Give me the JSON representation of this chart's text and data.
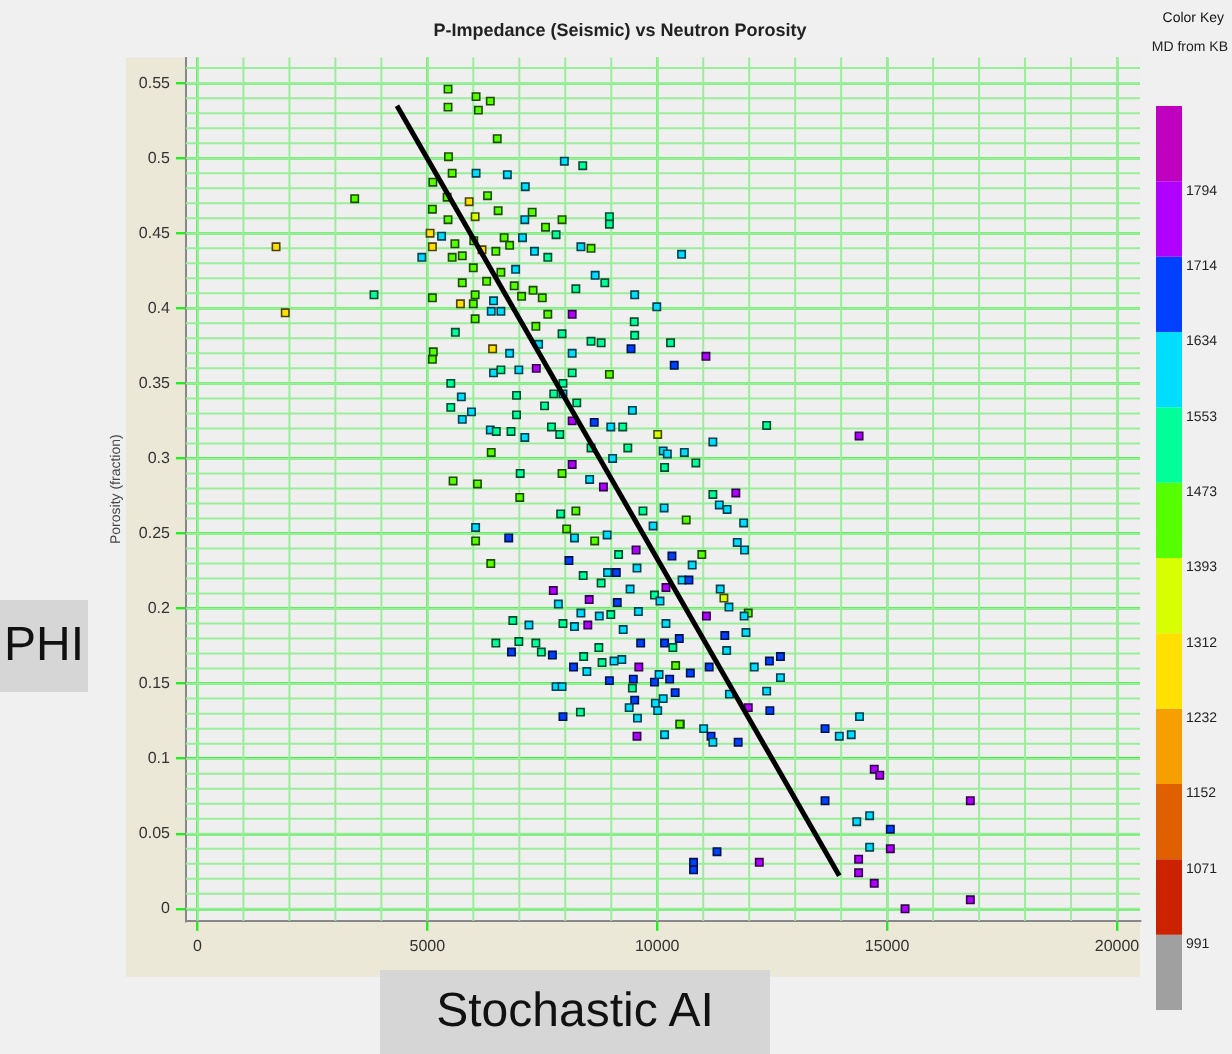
{
  "chart_data": {
    "type": "scatter",
    "title": "P-Impedance (Seismic) vs Neutron Porosity",
    "ylabel": "Porosity (fraction)",
    "clabel": "MD from KB",
    "annotations": [
      "PHI",
      "Stochastic AI",
      "Color Key"
    ],
    "xlim": [
      -250,
      20500
    ],
    "xticks": [
      0,
      5000,
      10000,
      15000,
      20000
    ],
    "ylim": [
      -0.008,
      0.567
    ],
    "yticks": [
      0,
      0.05,
      0.1,
      0.15,
      0.2,
      0.25,
      0.3,
      0.35,
      0.4,
      0.45,
      0.5,
      0.55
    ],
    "clim": [
      911,
      1875
    ],
    "cticks": [
      991,
      1071,
      1152,
      1232,
      1312,
      1393,
      1473,
      1553,
      1634,
      1714,
      1794
    ],
    "grid": true,
    "legend": false,
    "series": [
      {
        "marker": "square",
        "colors": [
          "#55ff00",
          "#55ff00",
          "#55ff00",
          "#55ff00",
          "#55ff00",
          "#55ff00",
          "#55ff00",
          "#00ddff",
          "#00ff99",
          "#55ff00",
          "#55ff00",
          "#55ff00",
          "#00ddff",
          "#00ddff",
          "#00ddff",
          "#55ff00",
          "#ffe000",
          "#55ff00",
          "#55ff00",
          "#55ff00",
          "#d8ff00",
          "#55ff00",
          "#55ff00",
          "#00ddff",
          "#55ff00",
          "#00ff99",
          "#00ff99",
          "#55ff00",
          "#ffe000",
          "#00ddff",
          "#55ff00",
          "#55ff00",
          "#55ff00",
          "#00ddff",
          "#00ff99",
          "#ffe000",
          "#ffe000",
          "#00ddff",
          "#55ff00",
          "#55ff00",
          "#ffe000",
          "#55ff00",
          "#55ff00",
          "#00ddff",
          "#00ff99",
          "#00ddff",
          "#55ff00",
          "#00ddff",
          "#55ff00",
          "#55ff00",
          "#00ddff",
          "#00ddff",
          "#00ff99",
          "#00ff99",
          "#55ff00",
          "#55ff00",
          "#55ff00",
          "#00ff99",
          "#55ff00",
          "#55ff00",
          "#55ff00",
          "#55ff00",
          "#00ddff",
          "#55ff00",
          "#ffe000",
          "#ffe000",
          "#55ff00",
          "#00ddff",
          "#00ddff",
          "#00ddff",
          "#00ddff",
          "#55ff00",
          "#b000ff",
          "#55ff00",
          "#00ff99",
          "#55ff00",
          "#00ff99",
          "#00ff99",
          "#00ff99",
          "#00ff99",
          "#00ff99",
          "#00ff99",
          "#00ddff",
          "#0040ff",
          "#ffe000",
          "#55ff00",
          "#55ff00",
          "#00ddff",
          "#00ddff",
          "#b000ff",
          "#0040ff",
          "#b000ff",
          "#00ddff",
          "#00ff99",
          "#00ddff",
          "#00ff99",
          "#55ff00",
          "#00ff99",
          "#00ff99",
          "#00ddff",
          "#00ff99",
          "#00ff99",
          "#00ddff",
          "#00ff99",
          "#00ff99",
          "#00ddff",
          "#00ff99",
          "#00ff99",
          "#00ddff",
          "#00ddff",
          "#b000ff",
          "#0040ff",
          "#00ff99",
          "#00ddff",
          "#00ff99",
          "#00ddff",
          "#00ff99",
          "#00ff99",
          "#00ff99",
          "#00ddff",
          "#d8ff00",
          "#00ff99",
          "#b000ff",
          "#00ddff",
          "#00ff99",
          "#00ff99",
          "#55ff00",
          "#00ddff",
          "#00ddff",
          "#00ddff",
          "#00ddff",
          "#00ff99",
          "#00ff99",
          "#b000ff",
          "#00ff99",
          "#55ff00",
          "#00ddff",
          "#b000ff",
          "#55ff00",
          "#55ff00",
          "#00ff99",
          "#b000ff",
          "#55ff00",
          "#00ff99",
          "#55ff00",
          "#00ff99",
          "#00ddff",
          "#55ff00",
          "#00ddff",
          "#55ff00",
          "#0040ff",
          "#00ddff",
          "#55ff00",
          "#00ddff",
          "#00ddff",
          "#55ff00",
          "#0040ff",
          "#00ff99",
          "#b000ff",
          "#0040ff",
          "#00ff99",
          "#00ddff",
          "#0040ff",
          "#00ddff",
          "#b000ff",
          "#00ddff",
          "#b000ff",
          "#00ff99",
          "#0040ff",
          "#00ddff",
          "#00ff99",
          "#b000ff",
          "#00ddff",
          "#00ddff",
          "#00ff99",
          "#00ddff",
          "#00ff99",
          "#00ddff",
          "#00ff99",
          "#00ddff",
          "#b000ff",
          "#00ddff",
          "#00ddff",
          "#00ff99",
          "#00ff99",
          "#00ff99",
          "#0040ff",
          "#00ff99",
          "#0040ff",
          "#00ff99",
          "#00ff99",
          "#0040ff",
          "#0040ff",
          "#00ff99",
          "#0040ff",
          "#00ddff",
          "#00ff99",
          "#00ddff",
          "#00ddff",
          "#b000ff",
          "#0040ff",
          "#0040ff",
          "#00ddff",
          "#00ddff",
          "#00ff99",
          "#0040ff",
          "#0040ff",
          "#00ddff",
          "#0040ff",
          "#0040ff",
          "#00ddff",
          "#00ddff",
          "#00ddff",
          "#00ddff",
          "#0040ff",
          "#00ff99",
          "#00ddff",
          "#b000ff",
          "#00ddff",
          "#00ddff",
          "#00ddff",
          "#00ddff",
          "#55ff00",
          "#00ddff",
          "#00ddff",
          "#00ddff",
          "#55ff00",
          "#00ddff",
          "#00ddff",
          "#0040ff",
          "#00ddff",
          "#d8ff00",
          "#00ddff",
          "#55ff00",
          "#00ddff",
          "#b000ff",
          "#00ddff",
          "#00ddff",
          "#0040ff",
          "#0040ff",
          "#00ddff",
          "#0040ff",
          "#0040ff",
          "#00ddff",
          "#0040ff",
          "#55ff00",
          "#0040ff",
          "#00ddff",
          "#00ddff",
          "#00ddff",
          "#b000ff",
          "#0040ff",
          "#00ddff",
          "#0040ff",
          "#00ddff",
          "#00ddff",
          "#55ff00",
          "#00ddff",
          "#0040ff",
          "#00ddff",
          "#0040ff",
          "#b000ff",
          "#b000ff",
          "#0040ff",
          "#b000ff",
          "#00ddff",
          "#00ddff",
          "#0040ff",
          "#00ddff",
          "#b000ff",
          "#0040ff",
          "#0040ff",
          "#0040ff",
          "#b000ff",
          "#b000ff",
          "#b000ff",
          "#b000ff",
          "#b000ff",
          "#b000ff"
        ],
        "x": [
          5450,
          6060,
          6370,
          5450,
          6110,
          6520,
          5460,
          7980,
          8380,
          3420,
          5120,
          5540,
          6060,
          6740,
          7130,
          6310,
          5910,
          5430,
          5110,
          5450,
          6040,
          6540,
          7280,
          7120,
          7930,
          8960,
          8960,
          7570,
          5060,
          5310,
          5600,
          6010,
          6670,
          7070,
          7800,
          5110,
          1710,
          4880,
          5540,
          5760,
          6190,
          6490,
          6790,
          7330,
          7620,
          8340,
          8560,
          10530,
          6000,
          6600,
          6920,
          8650,
          8860,
          3840,
          5760,
          6290,
          6890,
          8230,
          6040,
          7050,
          7300,
          7500,
          9510,
          5110,
          1910,
          5720,
          6000,
          6440,
          9990,
          6390,
          6600,
          7620,
          8150,
          6040,
          9500,
          7360,
          5610,
          7930,
          9510,
          8560,
          8780,
          10290,
          7420,
          9430,
          6420,
          5130,
          5110,
          6790,
          8150,
          7370,
          10370,
          11060,
          6440,
          6600,
          6990,
          8150,
          8960,
          5510,
          7950,
          5740,
          6940,
          7750,
          7950,
          8250,
          5510,
          5960,
          7550,
          6940,
          9460,
          5760,
          8150,
          8630,
          7700,
          8990,
          9250,
          6370,
          6820,
          7880,
          6500,
          7120,
          10010,
          12380,
          14390,
          11210,
          8560,
          9360,
          6390,
          9030,
          10130,
          10220,
          10590,
          10160,
          10840,
          8150,
          7020,
          7930,
          8530,
          8830,
          5560,
          6090,
          11210,
          11710,
          7010,
          7900,
          8230,
          9690,
          10150,
          8030,
          6050,
          6050,
          6770,
          8200,
          8640,
          8910,
          9910,
          6380,
          8080,
          9160,
          9540,
          10320,
          8390,
          8920,
          9110,
          9560,
          7740,
          7850,
          8520,
          8780,
          9130,
          9410,
          9940,
          10190,
          8340,
          8740,
          8990,
          9590,
          6860,
          7210,
          7950,
          8200,
          8490,
          9260,
          10190,
          6490,
          6990,
          7360,
          6830,
          7480,
          7720,
          8400,
          8730,
          9640,
          10160,
          10340,
          8180,
          8470,
          8800,
          9060,
          9230,
          9600,
          8960,
          9480,
          7800,
          7930,
          9460,
          9940,
          10270,
          10040,
          10390,
          9510,
          9960,
          10130,
          9390,
          10010,
          7950,
          8330,
          9570,
          9560,
          10160,
          10500,
          11350,
          11520,
          10630,
          11880,
          11740,
          11900,
          10970,
          10760,
          10540,
          10690,
          11370,
          11450,
          11560,
          11980,
          11890,
          11070,
          10060,
          11930,
          11470,
          10480,
          11510,
          12680,
          12440,
          12110,
          11130,
          10400,
          10720,
          12680,
          11570,
          12380,
          11980,
          12450,
          14400,
          13650,
          13960,
          14220,
          10490,
          11010,
          11170,
          11210,
          11760,
          14720,
          14840,
          13650,
          16810,
          14340,
          14620,
          15070,
          14620,
          15070,
          11300,
          10790,
          10790,
          12220,
          14380,
          14380,
          14720,
          15390,
          16810
        ],
        "values": [
          0.546,
          0.541,
          0.538,
          0.534,
          0.532,
          0.513,
          0.501,
          0.498,
          0.495,
          0.473,
          0.484,
          0.49,
          0.49,
          0.489,
          0.481,
          0.475,
          0.471,
          0.474,
          0.466,
          0.459,
          0.461,
          0.465,
          0.464,
          0.459,
          0.459,
          0.461,
          0.456,
          0.454,
          0.45,
          0.448,
          0.443,
          0.445,
          0.447,
          0.447,
          0.449,
          0.441,
          0.441,
          0.434,
          0.434,
          0.435,
          0.439,
          0.438,
          0.442,
          0.438,
          0.434,
          0.441,
          0.44,
          0.436,
          0.427,
          0.424,
          0.426,
          0.422,
          0.417,
          0.409,
          0.417,
          0.418,
          0.415,
          0.413,
          0.409,
          0.408,
          0.412,
          0.407,
          0.409,
          0.407,
          0.397,
          0.403,
          0.403,
          0.405,
          0.401,
          0.398,
          0.398,
          0.396,
          0.396,
          0.393,
          0.391,
          0.388,
          0.384,
          0.383,
          0.382,
          0.378,
          0.377,
          0.377,
          0.376,
          0.373,
          0.373,
          0.371,
          0.366,
          0.37,
          0.37,
          0.36,
          0.362,
          0.368,
          0.357,
          0.359,
          0.359,
          0.357,
          0.356,
          0.35,
          0.35,
          0.341,
          0.342,
          0.343,
          0.343,
          0.337,
          0.334,
          0.331,
          0.335,
          0.329,
          0.332,
          0.326,
          0.325,
          0.324,
          0.321,
          0.321,
          0.321,
          0.319,
          0.318,
          0.316,
          0.318,
          0.314,
          0.316,
          0.322,
          0.315,
          0.311,
          0.307,
          0.307,
          0.304,
          0.3,
          0.305,
          0.303,
          0.304,
          0.294,
          0.297,
          0.296,
          0.29,
          0.29,
          0.286,
          0.281,
          0.285,
          0.283,
          0.276,
          0.277,
          0.274,
          0.263,
          0.265,
          0.265,
          0.267,
          0.253,
          0.254,
          0.245,
          0.247,
          0.247,
          0.245,
          0.249,
          0.255,
          0.23,
          0.232,
          0.236,
          0.239,
          0.235,
          0.222,
          0.224,
          0.224,
          0.227,
          0.212,
          0.203,
          0.206,
          0.217,
          0.204,
          0.213,
          0.209,
          0.214,
          0.197,
          0.195,
          0.196,
          0.198,
          0.192,
          0.189,
          0.19,
          0.188,
          0.189,
          0.186,
          0.19,
          0.177,
          0.178,
          0.177,
          0.171,
          0.171,
          0.169,
          0.168,
          0.174,
          0.177,
          0.177,
          0.174,
          0.161,
          0.158,
          0.164,
          0.165,
          0.166,
          0.161,
          0.152,
          0.153,
          0.148,
          0.148,
          0.147,
          0.151,
          0.153,
          0.156,
          0.144,
          0.139,
          0.137,
          0.14,
          0.134,
          0.132,
          0.128,
          0.131,
          0.127,
          0.115,
          0.116,
          0.123,
          0.269,
          0.266,
          0.259,
          0.257,
          0.244,
          0.239,
          0.236,
          0.229,
          0.219,
          0.219,
          0.213,
          0.207,
          0.201,
          0.197,
          0.195,
          0.195,
          0.205,
          0.184,
          0.182,
          0.18,
          0.172,
          0.168,
          0.165,
          0.161,
          0.161,
          0.162,
          0.157,
          0.154,
          0.143,
          0.145,
          0.134,
          0.132,
          0.128,
          0.12,
          0.115,
          0.116,
          0.123,
          0.12,
          0.115,
          0.111,
          0.111,
          0.093,
          0.089,
          0.072,
          0.072,
          0.058,
          0.062,
          0.053,
          0.041,
          0.04,
          0.038,
          0.031,
          0.026,
          0.031,
          0.033,
          0.024,
          0.017,
          0,
          0.006
        ],
        "cvalues": [
          1433,
          1433,
          1433,
          1433,
          1433,
          1433,
          1433,
          1594,
          1513,
          1433,
          1433,
          1433,
          1594,
          1594,
          1594,
          1433,
          1272,
          1433,
          1433,
          1433,
          1352,
          1433,
          1433,
          1594,
          1433,
          1513,
          1513,
          1433,
          1272,
          1594,
          1433,
          1433,
          1433,
          1594,
          1513,
          1272,
          1272,
          1594,
          1433,
          1433,
          1272,
          1433,
          1433,
          1594,
          1513,
          1594,
          1433,
          1594,
          1433,
          1433,
          1594,
          1594,
          1513,
          1513,
          1433,
          1433,
          1433,
          1513,
          1433,
          1433,
          1433,
          1433,
          1594,
          1433,
          1272,
          1272,
          1433,
          1594,
          1594,
          1594,
          1594,
          1433,
          1754,
          1433,
          1513,
          1433,
          1513,
          1513,
          1513,
          1513,
          1513,
          1513,
          1594,
          1674,
          1272,
          1433,
          1433,
          1594,
          1594,
          1754,
          1674,
          1754,
          1594,
          1513,
          1594,
          1513,
          1433,
          1513,
          1513,
          1594,
          1513,
          1513,
          1594,
          1513,
          1513,
          1594,
          1513,
          1513,
          1594,
          1594,
          1754,
          1674,
          1513,
          1594,
          1513,
          1594,
          1513,
          1513,
          1513,
          1594,
          1352,
          1513,
          1754,
          1594,
          1513,
          1513,
          1433,
          1594,
          1594,
          1594,
          1594,
          1513,
          1513,
          1754,
          1513,
          1433,
          1594,
          1754,
          1433,
          1433,
          1513,
          1754,
          1433,
          1513,
          1433,
          1513,
          1594,
          1433,
          1594,
          1433,
          1674,
          1594,
          1433,
          1594,
          1594,
          1433,
          1674,
          1513,
          1754,
          1674,
          1513,
          1594,
          1674,
          1594,
          1754,
          1594,
          1754,
          1513,
          1674,
          1594,
          1513,
          1754,
          1594,
          1594,
          1513,
          1594,
          1513,
          1594,
          1513,
          1594,
          1754,
          1594,
          1594,
          1513,
          1513,
          1513,
          1674,
          1513,
          1674,
          1513,
          1513,
          1674,
          1674,
          1513,
          1674,
          1594,
          1513,
          1594,
          1594,
          1754,
          1674,
          1674,
          1594,
          1594,
          1513,
          1674,
          1674,
          1594,
          1674,
          1674,
          1594,
          1594,
          1594,
          1594,
          1674,
          1513,
          1594,
          1754,
          1594,
          1594,
          1594,
          1594,
          1433,
          1594,
          1594,
          1594,
          1433,
          1594,
          1594,
          1674,
          1594,
          1352,
          1594,
          1433,
          1594,
          1754,
          1594,
          1594,
          1674,
          1674,
          1594,
          1674,
          1674,
          1594,
          1674,
          1433,
          1674,
          1594,
          1594,
          1594,
          1754,
          1674,
          1594,
          1674,
          1594,
          1594,
          1433,
          1594,
          1674,
          1594,
          1674,
          1754,
          1754,
          1674,
          1754,
          1594,
          1594,
          1674,
          1594,
          1754,
          1674,
          1674,
          1674,
          1754,
          1754,
          1754,
          1754,
          1754,
          1754
        ]
      },
      {
        "type": "line",
        "color": "#000000",
        "marker": "none",
        "line_style": "solid",
        "x": [
          4340,
          13960
        ],
        "values": [
          0.535,
          0.022
        ]
      }
    ]
  }
}
